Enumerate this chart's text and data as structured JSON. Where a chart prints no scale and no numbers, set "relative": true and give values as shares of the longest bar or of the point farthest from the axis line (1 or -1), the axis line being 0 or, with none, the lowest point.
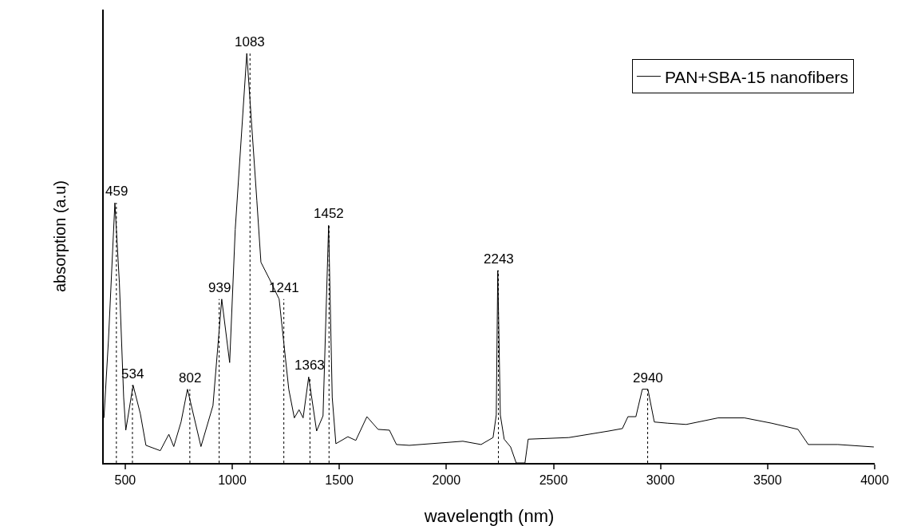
{
  "chart_data": {
    "type": "line",
    "relative": true,
    "xlabel": "wavelength (nm)",
    "ylabel": "absorption (a.u)",
    "xlim": [
      400,
      4000
    ],
    "xticks": [
      500,
      1000,
      1500,
      2000,
      2500,
      3000,
      3500,
      4000
    ],
    "grid": false,
    "legend": "top right",
    "marker": "none",
    "line_style": "solid",
    "series": [
      {
        "name": "PAN+SBA-15 nanofibers",
        "color": "#000000",
        "x": [
          401,
          422,
          452,
          473,
          493,
          503,
          537,
          571,
          597,
          664,
          704,
          727,
          761,
          791,
          854,
          910,
          951,
          988,
          1014,
          1068,
          1115,
          1134,
          1173,
          1219,
          1264,
          1290,
          1312,
          1331,
          1357,
          1394,
          1424,
          1450,
          1467,
          1484,
          1540,
          1577,
          1629,
          1681,
          1734,
          1767,
          1827,
          2077,
          2162,
          2218,
          2233,
          2240,
          2252,
          2270,
          2300,
          2326,
          2367,
          2382,
          2572,
          2759,
          2822,
          2848,
          2885,
          2915,
          2941,
          2971,
          3034,
          3120,
          3269,
          3392,
          3519,
          3642,
          3690,
          3828,
          3996
        ],
        "values": [
          0.11,
          0.3,
          0.635,
          0.44,
          0.16,
          0.08,
          0.19,
          0.12,
          0.043,
          0.03,
          0.07,
          0.04,
          0.1,
          0.18,
          0.04,
          0.14,
          0.4,
          0.245,
          0.57,
          1.0,
          0.64,
          0.49,
          0.45,
          0.4,
          0.18,
          0.11,
          0.13,
          0.11,
          0.21,
          0.078,
          0.115,
          0.58,
          0.16,
          0.047,
          0.064,
          0.055,
          0.113,
          0.082,
          0.08,
          0.045,
          0.043,
          0.053,
          0.045,
          0.062,
          0.117,
          0.47,
          0.117,
          0.058,
          0.039,
          0,
          0,
          0.058,
          0.062,
          0.078,
          0.084,
          0.113,
          0.113,
          0.18,
          0.18,
          0.1,
          0.097,
          0.094,
          0.11,
          0.11,
          0.097,
          0.082,
          0.045,
          0.045,
          0.039
        ]
      }
    ],
    "ref_lines": [
      {
        "axis": "x",
        "value": 459,
        "label": "459",
        "line_style": "dotted",
        "color": "#000000"
      },
      {
        "axis": "x",
        "value": 534,
        "label": "534",
        "line_style": "dotted",
        "color": "#000000"
      },
      {
        "axis": "x",
        "value": 802,
        "label": "802",
        "line_style": "dotted",
        "color": "#000000"
      },
      {
        "axis": "x",
        "value": 939,
        "label": "939",
        "line_style": "dotted",
        "color": "#000000"
      },
      {
        "axis": "x",
        "value": 1083,
        "label": "1083",
        "line_style": "dotted",
        "color": "#000000"
      },
      {
        "axis": "x",
        "value": 1241,
        "label": "1241",
        "line_style": "dotted",
        "color": "#000000"
      },
      {
        "axis": "x",
        "value": 1363,
        "label": "1363",
        "line_style": "dotted",
        "color": "#000000"
      },
      {
        "axis": "x",
        "value": 1452,
        "label": "1452",
        "line_style": "dotted",
        "color": "#000000"
      },
      {
        "axis": "x",
        "value": 2243,
        "label": "2243",
        "line_style": "dotted",
        "color": "#000000"
      },
      {
        "axis": "x",
        "value": 2940,
        "label": "2940",
        "line_style": "dotted",
        "color": "#000000"
      }
    ]
  }
}
